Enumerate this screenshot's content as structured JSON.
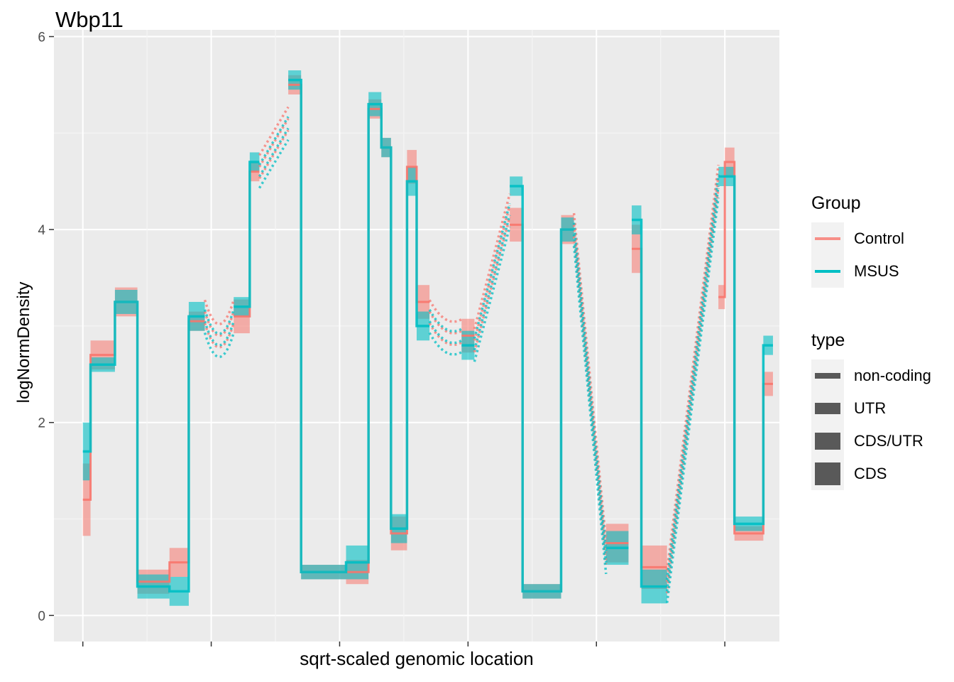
{
  "title": "Wbp11",
  "colors": {
    "panel": "#ebebeb",
    "grid_major": "#ffffff",
    "grid_minor": "#f5f5f5",
    "control": "#f8766d",
    "msus": "#00bfc4",
    "type_key": "#595959"
  },
  "legend": {
    "group_title": "Group",
    "groups": [
      {
        "label": "Control",
        "color": "#f8766d"
      },
      {
        "label": "MSUS",
        "color": "#00bfc4"
      }
    ],
    "type_title": "type",
    "types": [
      {
        "label": "non-coding",
        "thickness": 1
      },
      {
        "label": "UTR",
        "thickness": 2
      },
      {
        "label": "CDS/UTR",
        "thickness": 3
      },
      {
        "label": "CDS",
        "thickness": 4
      }
    ]
  },
  "chart_data": {
    "type": "line",
    "title": "Wbp11",
    "xlabel": "sqrt-scaled genomic location",
    "ylabel": "logNormDensity",
    "ylim": [
      -0.27,
      6.07
    ],
    "y_ticks": [
      "0",
      "2",
      "4",
      "6"
    ],
    "x_ticks": [],
    "x_tick_labels_shown": false,
    "xlim": [
      -0.045,
      1.085
    ],
    "grid": true,
    "legend_position": "right",
    "series": [
      {
        "name": "Control",
        "color": "#f8766d",
        "segments": [
          {
            "x": [
              0.0,
              0.012
            ],
            "y": 1.2,
            "spread": 0.75,
            "type": "non-coding"
          },
          {
            "x": [
              0.012,
              0.05
            ],
            "y": 2.7,
            "spread": 0.3,
            "type": "UTR"
          },
          {
            "x": [
              0.05,
              0.085
            ],
            "y": 3.25,
            "spread": 0.3,
            "type": "CDS"
          },
          {
            "x": [
              0.085,
              0.135
            ],
            "y": 0.35,
            "spread": 0.25,
            "type": "CDS"
          },
          {
            "x": [
              0.135,
              0.165
            ],
            "y": 0.55,
            "spread": 0.3,
            "type": "CDS"
          },
          {
            "x": [
              0.165,
              0.19
            ],
            "y": 3.05,
            "spread": 0.2,
            "type": "CDS"
          },
          {
            "x": [
              0.235,
              0.26
            ],
            "y": 3.1,
            "spread": 0.35,
            "type": "CDS"
          },
          {
            "x": [
              0.26,
              0.275
            ],
            "y": 4.6,
            "spread": 0.2,
            "type": "UTR"
          },
          {
            "x": [
              0.32,
              0.34
            ],
            "y": 5.5,
            "spread": 0.2,
            "type": "CDS"
          },
          {
            "x": [
              0.34,
              0.41
            ],
            "y": 0.45,
            "spread": 0.15,
            "type": "CDS"
          },
          {
            "x": [
              0.41,
              0.445
            ],
            "y": 0.45,
            "spread": 0.25,
            "type": "CDS"
          },
          {
            "x": [
              0.445,
              0.465
            ],
            "y": 5.25,
            "spread": 0.2,
            "type": "CDS"
          },
          {
            "x": [
              0.465,
              0.48
            ],
            "y": 4.85,
            "spread": 0.2,
            "type": "CDS"
          },
          {
            "x": [
              0.48,
              0.505
            ],
            "y": 0.85,
            "spread": 0.35,
            "type": "CDS"
          },
          {
            "x": [
              0.505,
              0.52
            ],
            "y": 4.65,
            "spread": 0.35,
            "type": "CDS"
          },
          {
            "x": [
              0.52,
              0.54
            ],
            "y": 3.25,
            "spread": 0.35,
            "type": "CDS"
          },
          {
            "x": [
              0.59,
              0.61
            ],
            "y": 2.9,
            "spread": 0.35,
            "type": "CDS"
          },
          {
            "x": [
              0.665,
              0.685
            ],
            "y": 4.05,
            "spread": 0.35,
            "type": "CDS"
          },
          {
            "x": [
              0.685,
              0.745
            ],
            "y": 0.25,
            "spread": 0.15,
            "type": "CDS"
          },
          {
            "x": [
              0.745,
              0.765
            ],
            "y": 4.0,
            "spread": 0.3,
            "type": "CDS"
          },
          {
            "x": [
              0.815,
              0.85
            ],
            "y": 0.75,
            "spread": 0.4,
            "type": "CDS"
          },
          {
            "x": [
              0.855,
              0.87
            ],
            "y": 3.8,
            "spread": 0.5,
            "type": "UTR"
          },
          {
            "x": [
              0.87,
              0.91
            ],
            "y": 0.5,
            "spread": 0.45,
            "type": "CDS"
          },
          {
            "x": [
              0.99,
              1.0
            ],
            "y": 3.3,
            "spread": 0.25,
            "type": "CDS"
          },
          {
            "x": [
              1.0,
              1.015
            ],
            "y": 4.7,
            "spread": 0.3,
            "type": "CDS"
          },
          {
            "x": [
              1.015,
              1.06
            ],
            "y": 0.85,
            "spread": 0.15,
            "type": "CDS"
          },
          {
            "x": [
              1.06,
              1.075
            ],
            "y": 2.4,
            "spread": 0.25,
            "type": "UTR"
          }
        ]
      },
      {
        "name": "MSUS",
        "color": "#00bfc4",
        "segments": [
          {
            "x": [
              0.0,
              0.012
            ],
            "y": 1.7,
            "spread": 0.6,
            "type": "non-coding"
          },
          {
            "x": [
              0.012,
              0.05
            ],
            "y": 2.6,
            "spread": 0.15,
            "type": "UTR"
          },
          {
            "x": [
              0.05,
              0.085
            ],
            "y": 3.25,
            "spread": 0.25,
            "type": "CDS"
          },
          {
            "x": [
              0.085,
              0.135
            ],
            "y": 0.3,
            "spread": 0.25,
            "type": "CDS"
          },
          {
            "x": [
              0.135,
              0.165
            ],
            "y": 0.25,
            "spread": 0.3,
            "type": "CDS"
          },
          {
            "x": [
              0.165,
              0.19
            ],
            "y": 3.1,
            "spread": 0.3,
            "type": "CDS"
          },
          {
            "x": [
              0.235,
              0.26
            ],
            "y": 3.2,
            "spread": 0.2,
            "type": "CDS"
          },
          {
            "x": [
              0.26,
              0.275
            ],
            "y": 4.7,
            "spread": 0.2,
            "type": "UTR"
          },
          {
            "x": [
              0.32,
              0.34
            ],
            "y": 5.55,
            "spread": 0.2,
            "type": "CDS"
          },
          {
            "x": [
              0.34,
              0.41
            ],
            "y": 0.45,
            "spread": 0.15,
            "type": "CDS"
          },
          {
            "x": [
              0.41,
              0.445
            ],
            "y": 0.55,
            "spread": 0.35,
            "type": "CDS"
          },
          {
            "x": [
              0.445,
              0.465
            ],
            "y": 5.3,
            "spread": 0.25,
            "type": "CDS"
          },
          {
            "x": [
              0.465,
              0.48
            ],
            "y": 4.85,
            "spread": 0.2,
            "type": "CDS"
          },
          {
            "x": [
              0.48,
              0.505
            ],
            "y": 0.9,
            "spread": 0.3,
            "type": "CDS"
          },
          {
            "x": [
              0.505,
              0.52
            ],
            "y": 4.5,
            "spread": 0.3,
            "type": "CDS"
          },
          {
            "x": [
              0.52,
              0.54
            ],
            "y": 3.0,
            "spread": 0.3,
            "type": "CDS"
          },
          {
            "x": [
              0.59,
              0.61
            ],
            "y": 2.8,
            "spread": 0.3,
            "type": "CDS"
          },
          {
            "x": [
              0.665,
              0.685
            ],
            "y": 4.45,
            "spread": 0.2,
            "type": "CDS"
          },
          {
            "x": [
              0.685,
              0.745
            ],
            "y": 0.25,
            "spread": 0.15,
            "type": "CDS"
          },
          {
            "x": [
              0.745,
              0.765
            ],
            "y": 4.0,
            "spread": 0.25,
            "type": "CDS"
          },
          {
            "x": [
              0.815,
              0.85
            ],
            "y": 0.7,
            "spread": 0.35,
            "type": "CDS"
          },
          {
            "x": [
              0.855,
              0.87
            ],
            "y": 4.1,
            "spread": 0.3,
            "type": "UTR"
          },
          {
            "x": [
              0.87,
              0.91
            ],
            "y": 0.3,
            "spread": 0.35,
            "type": "CDS"
          },
          {
            "x": [
              0.99,
              1.0
            ],
            "y": 4.55,
            "spread": 0.2,
            "type": "CDS"
          },
          {
            "x": [
              1.0,
              1.015
            ],
            "y": 4.55,
            "spread": 0.2,
            "type": "CDS"
          },
          {
            "x": [
              1.015,
              1.06
            ],
            "y": 0.95,
            "spread": 0.15,
            "type": "CDS"
          },
          {
            "x": [
              1.06,
              1.075
            ],
            "y": 2.8,
            "spread": 0.2,
            "type": "UTR"
          }
        ]
      }
    ],
    "dotted_connectors": [
      {
        "x": [
          0.19,
          0.235
        ],
        "y_start": 3.1,
        "y_end": 3.1,
        "dip": 0.5
      },
      {
        "x": [
          0.275,
          0.32
        ],
        "y_start": 4.6,
        "y_end": 5.1,
        "dip": 0.0
      },
      {
        "x": [
          0.54,
          0.59
        ],
        "y_start": 3.1,
        "y_end": 2.9,
        "dip": 0.2
      },
      {
        "x": [
          0.61,
          0.665
        ],
        "y_start": 2.8,
        "y_end": 4.2,
        "dip": 0.0
      },
      {
        "x": [
          0.765,
          0.815
        ],
        "y_start": 4.0,
        "y_end": 0.6,
        "dip": 0.0
      },
      {
        "x": [
          0.91,
          0.99
        ],
        "y_start": 0.3,
        "y_end": 4.5,
        "dip": 0.0
      }
    ]
  }
}
